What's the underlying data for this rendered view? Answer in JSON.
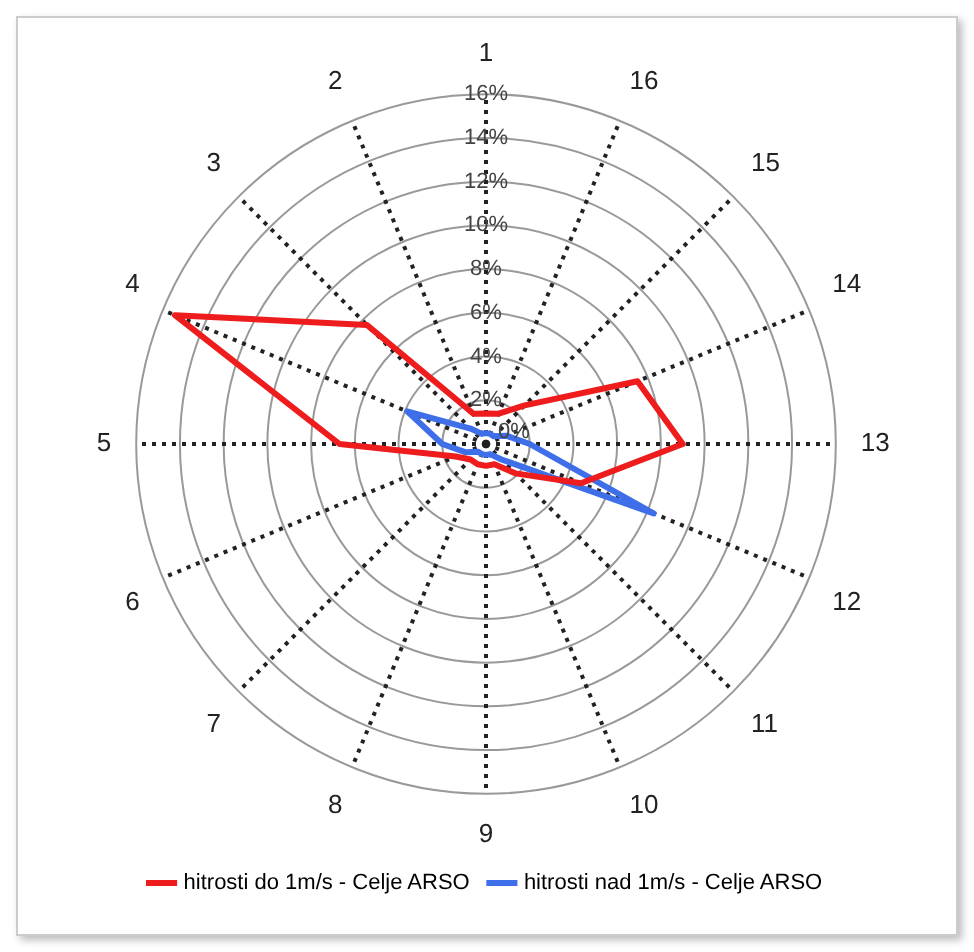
{
  "chart_data": {
    "type": "radar",
    "categories": [
      "1",
      "16",
      "15",
      "14",
      "13",
      "12",
      "11",
      "10",
      "9",
      "8",
      "7",
      "6",
      "5",
      "4",
      "3",
      "2"
    ],
    "series": [
      {
        "name": "hitrosti do 1m/s - Celje ARSO",
        "color": "#ee1c1c",
        "values": [
          1.4,
          1.5,
          2.5,
          7.5,
          9,
          4.7,
          1.9,
          1,
          1,
          1,
          1,
          1.5,
          6.7,
          15.4,
          7.7,
          1.5
        ]
      },
      {
        "name": "hitrosti nad 1m/s - Celje ARSO",
        "color": "#3f6fe8",
        "values": [
          0.5,
          0.5,
          0.5,
          1,
          2,
          8.3,
          1,
          0.5,
          0.5,
          0.5,
          0.5,
          1,
          2,
          3.9,
          1,
          0.5
        ]
      }
    ],
    "ylim": [
      0,
      16
    ],
    "yticks": [
      {
        "value": 0,
        "label": "0%"
      },
      {
        "value": 2,
        "label": "2%"
      },
      {
        "value": 4,
        "label": "4%"
      },
      {
        "value": 6,
        "label": "6%"
      },
      {
        "value": 8,
        "label": "8%"
      },
      {
        "value": 10,
        "label": "10%"
      },
      {
        "value": 12,
        "label": "12%"
      },
      {
        "value": 14,
        "label": "14%"
      },
      {
        "value": 16,
        "label": "16%"
      }
    ],
    "grid": true,
    "legend": "bottom",
    "marker": "none",
    "line_style": "solid"
  }
}
